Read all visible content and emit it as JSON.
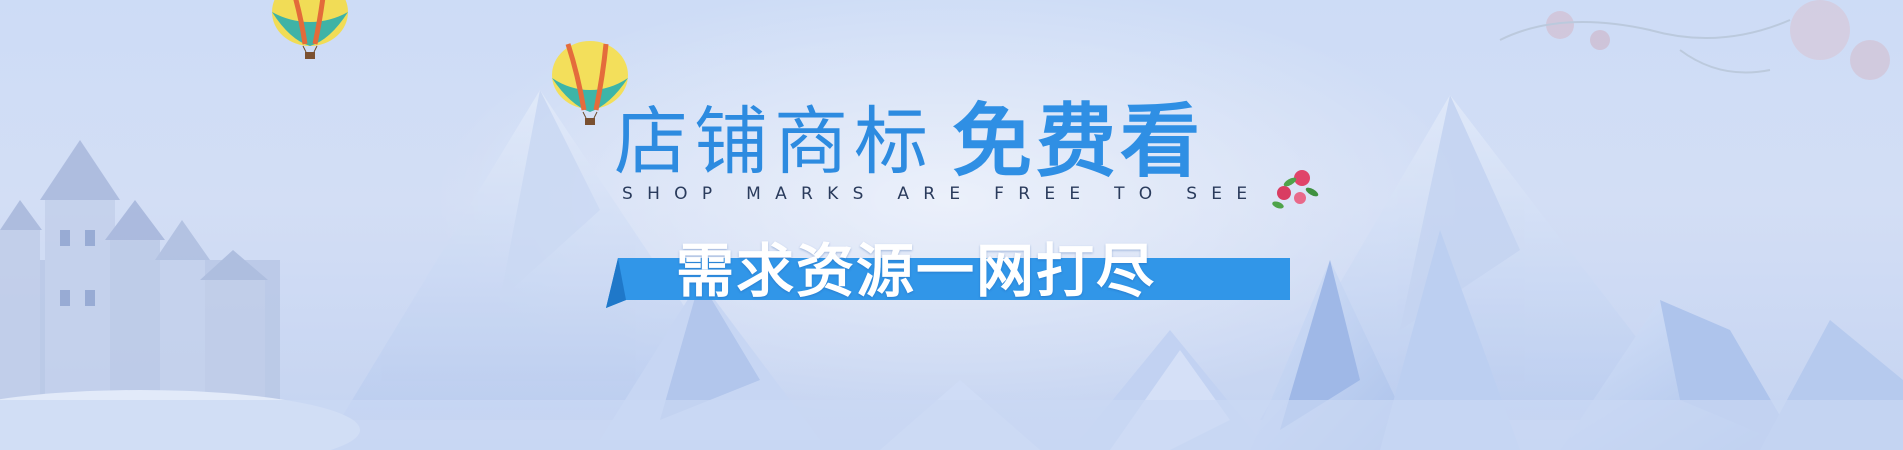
{
  "banner": {
    "title_thin": "店铺商标",
    "title_bold": "免费看",
    "subtitle": "SHOP MARKS ARE FREE TO SEE",
    "ribbon_text": "需求资源一网打尽"
  },
  "colors": {
    "accent": "#2f8fe4",
    "ribbon": "#3196e8",
    "subtitle": "#2a3b5c"
  }
}
